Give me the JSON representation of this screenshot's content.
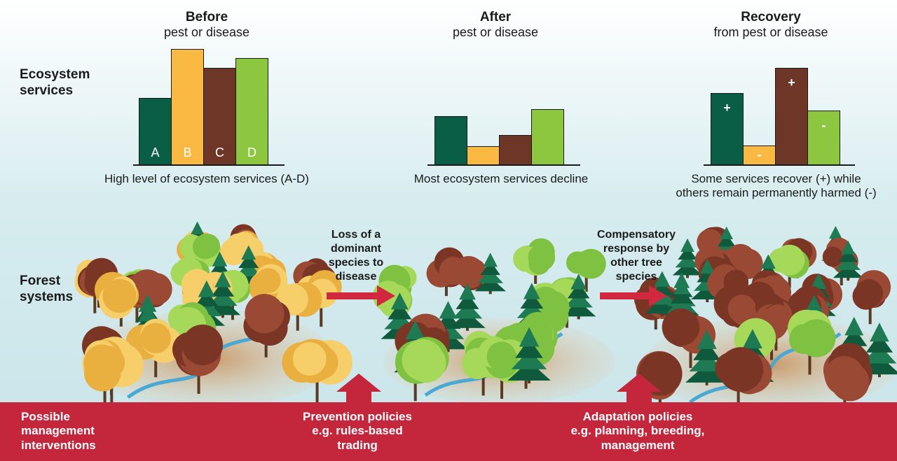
{
  "colors": {
    "dark_green": "#0b5e46",
    "orange": "#f9b942",
    "brown": "#6e3626",
    "light_green": "#8dc63f",
    "arrow_red": "#d1283f",
    "band_red": "#c4263c"
  },
  "row_labels": {
    "ecosystem": "Ecosystem services",
    "forest": "Forest systems",
    "management": "Possible management interventions"
  },
  "panels": [
    {
      "title": "Before",
      "subtitle": "pest or disease",
      "caption": "High level of ecosystem services (A-D)",
      "bars": [
        {
          "label": "A",
          "value": 0.58,
          "color": "dark_green"
        },
        {
          "label": "B",
          "value": 1.0,
          "color": "orange"
        },
        {
          "label": "C",
          "value": 0.84,
          "color": "brown"
        },
        {
          "label": "D",
          "value": 0.92,
          "color": "light_green"
        }
      ]
    },
    {
      "title": "After",
      "subtitle": "pest or disease",
      "caption": "Most ecosystem services decline",
      "bars": [
        {
          "label": "",
          "value": 0.42,
          "color": "dark_green"
        },
        {
          "label": "",
          "value": 0.16,
          "color": "orange"
        },
        {
          "label": "",
          "value": 0.26,
          "color": "brown"
        },
        {
          "label": "",
          "value": 0.48,
          "color": "light_green"
        }
      ]
    },
    {
      "title": "Recovery",
      "subtitle": "from pest or disease",
      "caption_line1": "Some services recover (+) while",
      "caption_line2": "others remain permanently harmed (-)",
      "bars": [
        {
          "label": "",
          "sign": "+",
          "value": 0.62,
          "color": "dark_green"
        },
        {
          "label": "",
          "sign": "-",
          "value": 0.17,
          "color": "orange"
        },
        {
          "label": "",
          "sign": "+",
          "value": 0.84,
          "color": "brown"
        },
        {
          "label": "",
          "sign": "-",
          "value": 0.47,
          "color": "light_green"
        }
      ]
    }
  ],
  "arrows": [
    {
      "text": "Loss of a dominant species to disease"
    },
    {
      "text": "Compensatory response by other tree species"
    }
  ],
  "interventions": [
    {
      "title": "Prevention policies",
      "detail": "e.g. rules-based trading"
    },
    {
      "title": "Adaptation policies",
      "detail": "e.g. planning, breeding, management"
    }
  ]
}
